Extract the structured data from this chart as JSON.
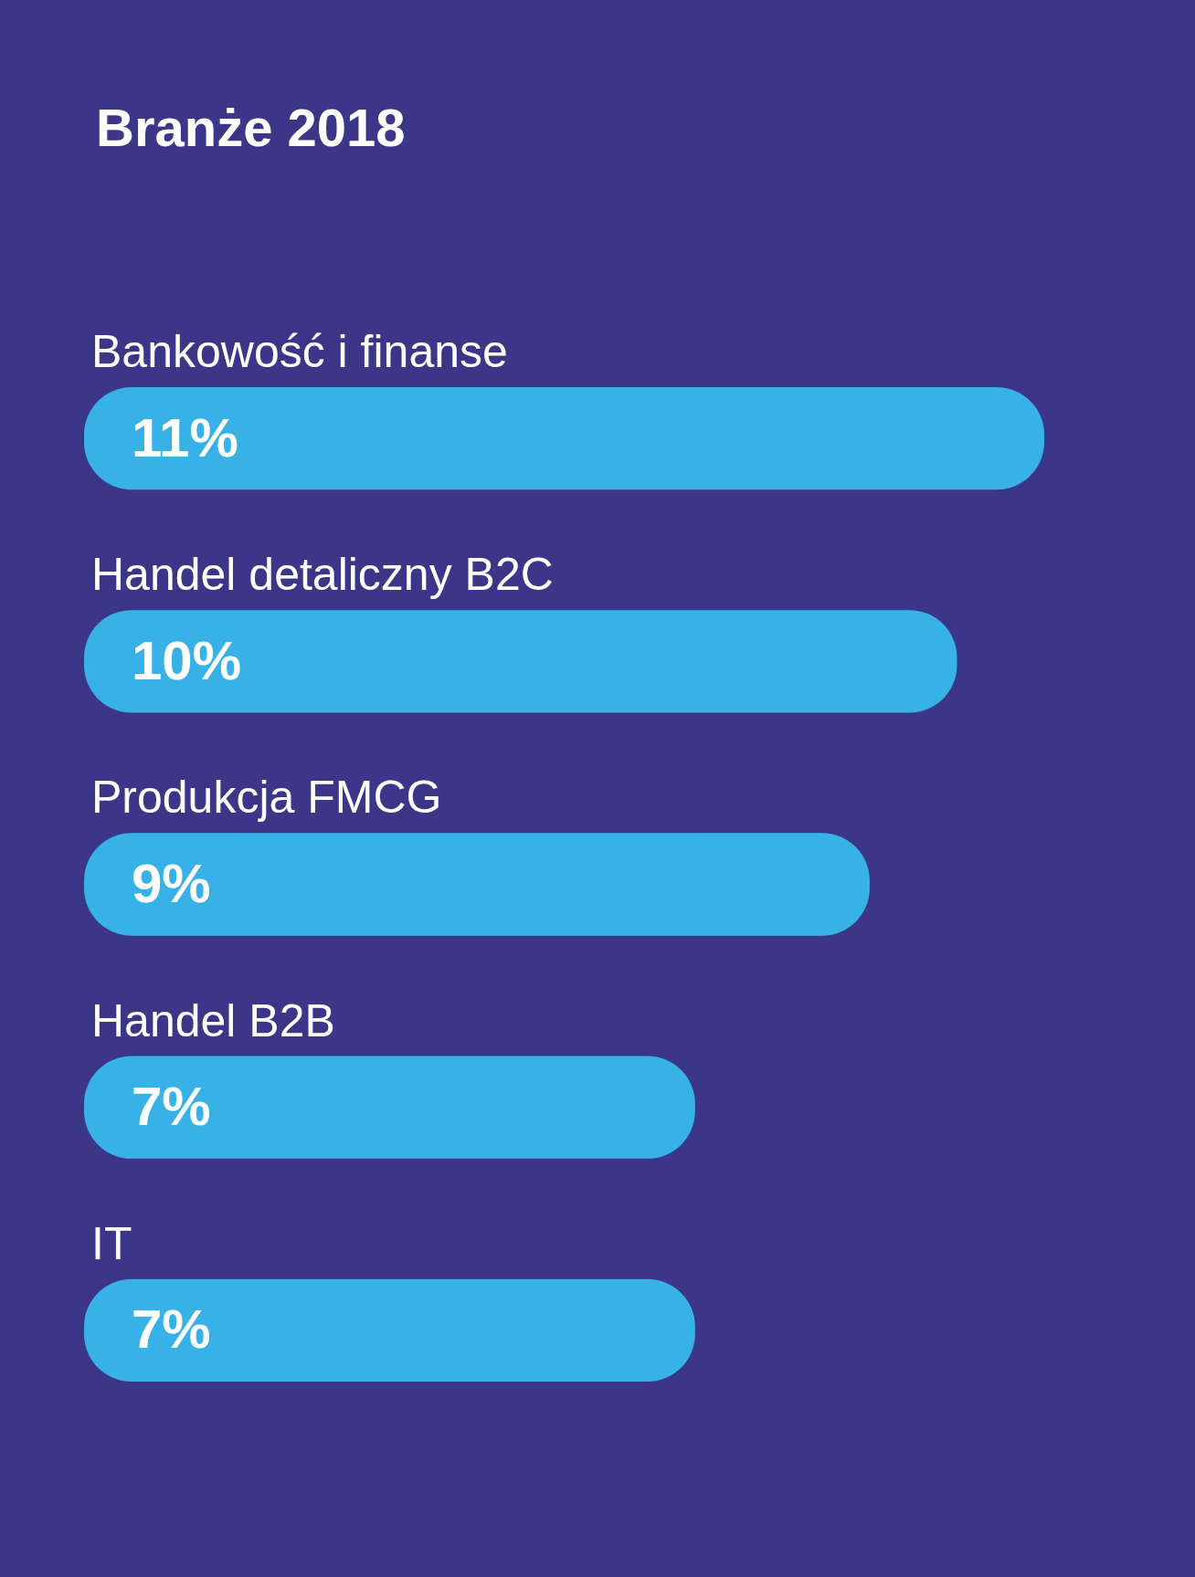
{
  "chart_data": {
    "type": "bar",
    "orientation": "horizontal",
    "title": "Branże 2018",
    "categories": [
      "Bankowość i finanse",
      "Handel detaliczny B2C",
      "Produkcja FMCG",
      "Handel B2B",
      "IT"
    ],
    "values": [
      11,
      10,
      9,
      7,
      7
    ],
    "value_labels": [
      "11%",
      "10%",
      "9%",
      "7%",
      "7%"
    ],
    "color": "#38b2e6",
    "legend": false
  }
}
